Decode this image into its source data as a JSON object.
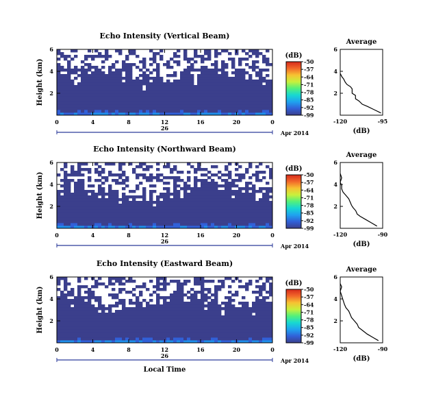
{
  "chart_data": [
    {
      "type": "heatmap",
      "title": "Echo Intensity (Vertical Beam)",
      "ylabel": "Height (km)",
      "ylim": [
        0,
        6
      ],
      "yticks": [
        "2",
        "4",
        "6"
      ],
      "xticks": [
        "0",
        "4",
        "8",
        "12",
        "16",
        "20",
        "0"
      ],
      "day_label": "26",
      "date_label": "Apr 2014",
      "colorbar": {
        "label": "(dB)",
        "min": -99,
        "max": -50,
        "ticks": [
          "-50",
          "-57",
          "-64",
          "-71",
          "-78",
          "-85",
          "-92",
          "-99"
        ]
      },
      "clear_above_km": 3.8,
      "average": {
        "title": "Average",
        "xlabel": "(dB)",
        "xticks": [
          "-120",
          "-95"
        ],
        "xlim": [
          -120,
          -95
        ],
        "yticks": [
          "2",
          "4",
          "6"
        ],
        "profile": [
          [
            0.2,
            -96
          ],
          [
            0.5,
            -100
          ],
          [
            0.8,
            -104
          ],
          [
            1.0,
            -107
          ],
          [
            1.3,
            -109
          ],
          [
            1.5,
            -111
          ],
          [
            1.8,
            -111
          ],
          [
            2.0,
            -113
          ],
          [
            2.4,
            -113
          ],
          [
            2.6,
            -114
          ],
          [
            2.8,
            -116
          ],
          [
            3.0,
            -117
          ],
          [
            3.3,
            -118
          ],
          [
            3.5,
            -119
          ],
          [
            3.8,
            -120
          ]
        ]
      }
    },
    {
      "type": "heatmap",
      "title": "Echo Intensity (Northward Beam)",
      "ylabel": "Height (km)",
      "ylim": [
        0,
        6
      ],
      "yticks": [
        "2",
        "4",
        "6"
      ],
      "xticks": [
        "0",
        "4",
        "8",
        "12",
        "16",
        "20",
        "0"
      ],
      "day_label": "26",
      "date_label": "Apr 2014",
      "colorbar": {
        "label": "(dB)",
        "min": -99,
        "max": -50,
        "ticks": [
          "-50",
          "-57",
          "-64",
          "-71",
          "-78",
          "-85",
          "-92",
          "-99"
        ]
      },
      "clear_above_km": 3.6,
      "average": {
        "title": "Average",
        "xlabel": "(dB)",
        "xticks": [
          "-120",
          "-90"
        ],
        "xlim": [
          -120,
          -90
        ],
        "yticks": [
          "2",
          "4",
          "6"
        ],
        "profile": [
          [
            0.2,
            -94
          ],
          [
            0.5,
            -98
          ],
          [
            0.8,
            -102
          ],
          [
            1.1,
            -106
          ],
          [
            1.3,
            -108
          ],
          [
            1.6,
            -109
          ],
          [
            1.9,
            -111
          ],
          [
            2.1,
            -112
          ],
          [
            2.4,
            -113
          ],
          [
            2.7,
            -114
          ],
          [
            3.0,
            -116
          ],
          [
            3.3,
            -118
          ],
          [
            3.6,
            -119
          ],
          [
            3.9,
            -119
          ],
          [
            4.2,
            -120
          ],
          [
            4.6,
            -119
          ],
          [
            5.0,
            -120
          ]
        ]
      }
    },
    {
      "type": "heatmap",
      "title": "Echo Intensity (Eastward Beam)",
      "ylabel": "Height (km)",
      "xlabel": "Local Time",
      "ylim": [
        0,
        6
      ],
      "yticks": [
        "2",
        "4",
        "6"
      ],
      "xticks": [
        "0",
        "4",
        "8",
        "12",
        "16",
        "20",
        "0"
      ],
      "day_label": "26",
      "date_label": "Apr 2014",
      "colorbar": {
        "label": "(dB)",
        "min": -99,
        "max": -50,
        "ticks": [
          "-50",
          "-57",
          "-64",
          "-71",
          "-78",
          "-85",
          "-92",
          "-99"
        ]
      },
      "clear_above_km": 4.0,
      "average": {
        "title": "Average",
        "xlabel": "(dB)",
        "xticks": [
          "-120",
          "-90"
        ],
        "xlim": [
          -120,
          -90
        ],
        "yticks": [
          "2",
          "4",
          "6"
        ],
        "profile": [
          [
            0.2,
            -93
          ],
          [
            0.5,
            -97
          ],
          [
            0.8,
            -101
          ],
          [
            1.1,
            -104
          ],
          [
            1.4,
            -107
          ],
          [
            1.7,
            -108
          ],
          [
            2.0,
            -110
          ],
          [
            2.3,
            -112
          ],
          [
            2.6,
            -113
          ],
          [
            2.9,
            -114
          ],
          [
            3.2,
            -116
          ],
          [
            3.5,
            -117
          ],
          [
            3.9,
            -118
          ],
          [
            4.3,
            -119
          ],
          [
            4.7,
            -120
          ],
          [
            5.1,
            -119
          ],
          [
            5.4,
            -120
          ]
        ]
      }
    }
  ],
  "colors": {
    "background_echo": "#3a3f7a",
    "colormap": [
      "#3b3f8c",
      "#3160d8",
      "#1fa3ef",
      "#17d8d2",
      "#52f07c",
      "#c8f03c",
      "#f7c232",
      "#f2682a",
      "#d62a1c"
    ]
  }
}
